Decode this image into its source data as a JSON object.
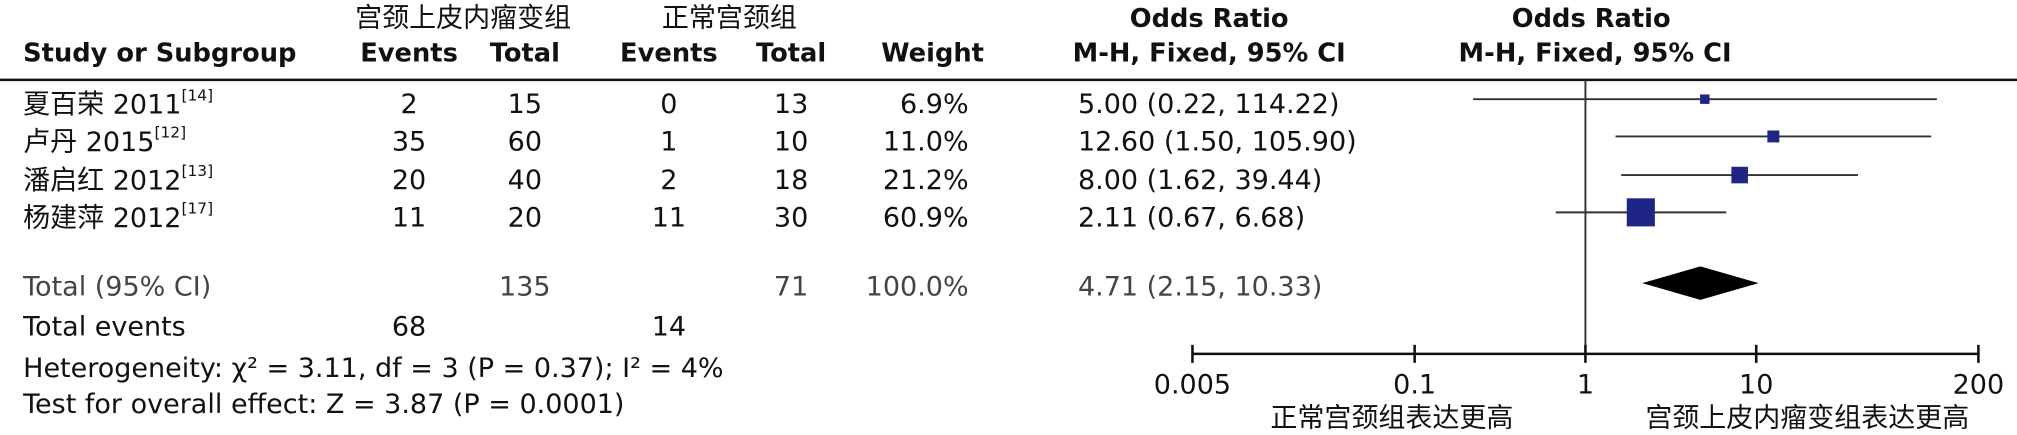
{
  "chart_data": {
    "type": "forest",
    "columns": {
      "study": "Study or Subgroup",
      "group1": "宫颈上皮内瘤变组",
      "group2": "正常宫颈组",
      "events1": "Events",
      "total1": "Total",
      "events2": "Events",
      "total2": "Total",
      "weight": "Weight",
      "effect": "Odds Ratio",
      "method": "M-H, Fixed, 95% CI",
      "plot_effect": "Odds Ratio",
      "plot_method": "M-H, Fixed, 95% CI"
    },
    "studies": [
      {
        "name": "夏百荣 2011",
        "ref": "[14]",
        "events1": 2,
        "total1": 15,
        "events2": 0,
        "total2": 13,
        "weight": 6.9,
        "weight_label": "6.9%",
        "or": 5.0,
        "ci_low": 0.22,
        "ci_high": 114.22,
        "or_label": "5.00 (0.22, 114.22)"
      },
      {
        "name": "卢丹 2015",
        "ref": "[12]",
        "events1": 35,
        "total1": 60,
        "events2": 1,
        "total2": 10,
        "weight": 11.0,
        "weight_label": "11.0%",
        "or": 12.6,
        "ci_low": 1.5,
        "ci_high": 105.9,
        "or_label": "12.60 (1.50, 105.90)"
      },
      {
        "name": "潘启红 2012",
        "ref": "[13]",
        "events1": 20,
        "total1": 40,
        "events2": 2,
        "total2": 18,
        "weight": 21.2,
        "weight_label": "21.2%",
        "or": 8.0,
        "ci_low": 1.62,
        "ci_high": 39.44,
        "or_label": "8.00 (1.62, 39.44)"
      },
      {
        "name": "杨建萍 2012",
        "ref": "[17]",
        "events1": 11,
        "total1": 20,
        "events2": 11,
        "total2": 30,
        "weight": 60.9,
        "weight_label": "60.9%",
        "or": 2.11,
        "ci_low": 0.67,
        "ci_high": 6.68,
        "or_label": "2.11 (0.67, 6.68)"
      }
    ],
    "total": {
      "name": "Total (95% CI)",
      "total1": 135,
      "total2": 71,
      "weight": 100.0,
      "weight_label": "100.0%",
      "or": 4.71,
      "ci_low": 2.15,
      "ci_high": 10.33,
      "or_label": "4.71 (2.15, 10.33)"
    },
    "total_events": {
      "name": "Total events",
      "events1": 68,
      "events2": 14
    },
    "heterogeneity": "Heterogeneity: χ² = 3.11, df = 3 (P = 0.37); I² = 4%",
    "overall_effect": "Test for overall effect: Z = 3.87 (P = 0.0001)",
    "x_scale": "log",
    "xlim": [
      0.005,
      200
    ],
    "xticks": [
      0.005,
      0.1,
      1,
      10,
      200
    ],
    "reference_line": 1,
    "xlabel_left": "正常宫颈组表达更高",
    "xlabel_right": "宫颈上皮内瘤变组表达更高",
    "color": "#1f2585"
  }
}
